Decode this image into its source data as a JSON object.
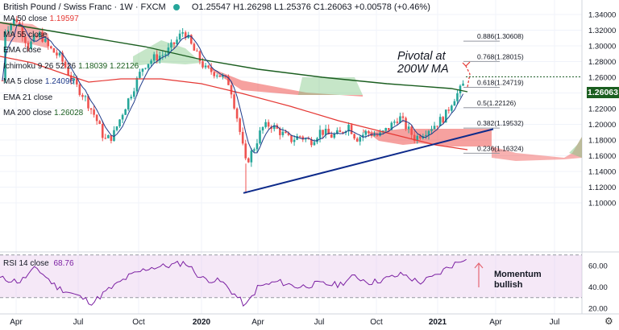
{
  "header": {
    "title": "British Pound / Swiss Franc · 1W · FXCM",
    "ohlc": "O1.25547 H1.26298 L1.25376 C1.26063 +0.00578 (+0.46%)"
  },
  "legend": [
    {
      "label": "MA 50 close",
      "value": "1.19597",
      "color": "#e53935"
    },
    {
      "label": "MA 55 close",
      "value": "",
      "color": "#555555"
    },
    {
      "label": "EMA close",
      "value": "",
      "color": "#555555"
    },
    {
      "label": "Ichimoku 9 26 52 26",
      "value": "1.18039 1.22126",
      "color": "#1b5e20"
    },
    {
      "label": "MA 5 close",
      "value": "1.24096",
      "color": "#1e3a8a"
    },
    {
      "label": "EMA 21 close",
      "value": "",
      "color": "#555555"
    },
    {
      "label": "MA 200 close",
      "value": "1.26028",
      "color": "#1b5e20"
    }
  ],
  "rsi_legend": {
    "label": "RSI 14 close",
    "value": "68.76"
  },
  "price_tag": "1.26063",
  "annotations": {
    "pivotal_line1": "Pivotal at",
    "pivotal_line2": "200W MA",
    "momentum_line1": "Momentum",
    "momentum_line2": "bullish"
  },
  "fib_levels": [
    {
      "label": "0.886(1.30608)",
      "value": 1.30608
    },
    {
      "label": "0.768(1.28015)",
      "value": 1.28015
    },
    {
      "label": "0.618(1.24719)",
      "value": 1.24719
    },
    {
      "label": "0.5(1.22126)",
      "value": 1.22126
    },
    {
      "label": "0.382(1.19532)",
      "value": 1.19532
    },
    {
      "label": "0.236(1.16324)",
      "value": 1.16324
    }
  ],
  "colors": {
    "up": "#26a69a",
    "down": "#ef5350",
    "ma200": "#1b5e20",
    "ma50": "#e53935",
    "ma5": "#1e3a8a",
    "trendline": "#0d2a8a",
    "rsi": "#7b1fa2",
    "cloud_bull": "#81c784",
    "cloud_bear": "#ef5350",
    "rsi_band": "#e1bee7",
    "price_tag": "#1b5e20"
  },
  "chart_data": [
    {
      "type": "candlestick",
      "title": "British Pound / Swiss Franc",
      "ylim": [
        1.09,
        1.35
      ],
      "y_ticks": [
        "1.34000",
        "1.32000",
        "1.30000",
        "1.28000",
        "1.26000",
        "1.24000",
        "1.22000",
        "1.20000",
        "1.18000",
        "1.16000",
        "1.14000",
        "1.12000",
        "1.10000"
      ],
      "x_ticks": [
        "Apr",
        "Jul",
        "Oct",
        "2020",
        "Apr",
        "Jul",
        "Oct",
        "2021",
        "Apr",
        "Jul"
      ],
      "last_close": 1.26063,
      "trendline": [
        [
          1.1125,
          "2020-03"
        ],
        [
          1.194,
          "2021-03"
        ]
      ],
      "ma200_last": 1.26028,
      "ma50_last": 1.19597,
      "ma5_last": 1.24096,
      "ichimoku_last": [
        1.18039,
        1.22126
      ]
    },
    {
      "type": "line",
      "title": "RSI 14 close",
      "ylim": [
        18,
        72
      ],
      "y_ticks": [
        "60.00",
        "40.00",
        "20.00"
      ],
      "bands": [
        30,
        70
      ],
      "last": 68.76
    }
  ]
}
